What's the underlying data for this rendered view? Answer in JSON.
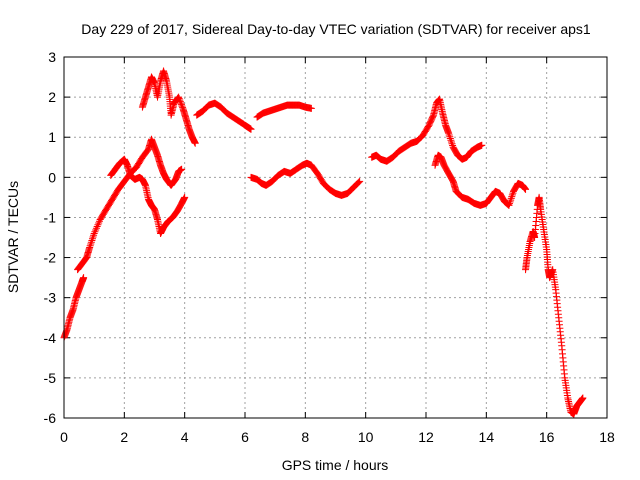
{
  "chart_data": {
    "type": "scatter",
    "title": "Day 229 of 2017, Sidereal Day-to-day VTEC variation (SDTVAR) for receiver aps1",
    "xlabel": "GPS time / hours",
    "ylabel": "SDTVAR / TECUs",
    "xlim": [
      0,
      18
    ],
    "ylim": [
      -6,
      3
    ],
    "xticks": [
      "0",
      "2",
      "4",
      "6",
      "8",
      "10",
      "12",
      "14",
      "16",
      "18"
    ],
    "yticks": [
      "3",
      "2",
      "1",
      "0",
      "-1",
      "-2",
      "-3",
      "-4",
      "-5",
      "-6"
    ],
    "grid": true,
    "marker": "+",
    "color": "#ff0000",
    "series": [
      {
        "name": "track-1",
        "points": [
          [
            0,
            -4.0
          ],
          [
            0.1,
            -3.8
          ],
          [
            0.2,
            -3.5
          ],
          [
            0.3,
            -3.3
          ],
          [
            0.4,
            -3.0
          ],
          [
            0.5,
            -2.8
          ],
          [
            0.6,
            -2.6
          ],
          [
            0.65,
            -2.5
          ]
        ]
      },
      {
        "name": "track-2",
        "points": [
          [
            0.45,
            -2.3
          ],
          [
            0.6,
            -2.15
          ],
          [
            0.75,
            -2.0
          ],
          [
            0.85,
            -1.75
          ],
          [
            1.0,
            -1.4
          ],
          [
            1.2,
            -1.05
          ],
          [
            1.4,
            -0.8
          ],
          [
            1.6,
            -0.55
          ],
          [
            1.8,
            -0.3
          ],
          [
            2.0,
            -0.1
          ],
          [
            2.2,
            0.1
          ],
          [
            2.4,
            0.25
          ],
          [
            2.6,
            0.5
          ],
          [
            2.8,
            0.7
          ],
          [
            2.9,
            0.95
          ],
          [
            3.0,
            0.75
          ],
          [
            3.1,
            0.55
          ],
          [
            3.2,
            0.3
          ],
          [
            3.3,
            0.1
          ],
          [
            3.4,
            -0.05
          ],
          [
            3.55,
            -0.2
          ],
          [
            3.7,
            -0.05
          ],
          [
            3.8,
            0.15
          ],
          [
            3.9,
            0.2
          ]
        ]
      },
      {
        "name": "track-3",
        "points": [
          [
            1.55,
            0.05
          ],
          [
            1.7,
            0.2
          ],
          [
            1.85,
            0.35
          ],
          [
            2.0,
            0.45
          ],
          [
            2.1,
            0.3
          ],
          [
            2.2,
            0.05
          ],
          [
            2.35,
            -0.05
          ],
          [
            2.5,
            0.0
          ],
          [
            2.6,
            -0.05
          ],
          [
            2.7,
            -0.2
          ],
          [
            2.8,
            -0.55
          ],
          [
            2.9,
            -0.7
          ],
          [
            3.0,
            -0.8
          ],
          [
            3.1,
            -1.05
          ],
          [
            3.2,
            -1.4
          ],
          [
            3.3,
            -1.25
          ],
          [
            3.45,
            -1.1
          ],
          [
            3.6,
            -1.0
          ],
          [
            3.75,
            -0.85
          ],
          [
            3.9,
            -0.65
          ],
          [
            4.0,
            -0.5
          ]
        ]
      },
      {
        "name": "track-4",
        "points": [
          [
            2.6,
            1.75
          ],
          [
            2.7,
            2.0
          ],
          [
            2.8,
            2.25
          ],
          [
            2.9,
            2.5
          ],
          [
            3.0,
            2.35
          ],
          [
            3.1,
            2.0
          ],
          [
            3.2,
            2.4
          ],
          [
            3.3,
            2.65
          ],
          [
            3.4,
            2.4
          ],
          [
            3.5,
            2.0
          ],
          [
            3.55,
            1.55
          ],
          [
            3.65,
            1.85
          ],
          [
            3.8,
            2.0
          ],
          [
            3.95,
            1.7
          ],
          [
            4.05,
            1.45
          ],
          [
            4.15,
            1.2
          ],
          [
            4.25,
            1.0
          ],
          [
            4.35,
            0.85
          ]
        ]
      },
      {
        "name": "track-5",
        "points": [
          [
            4.4,
            1.55
          ],
          [
            4.6,
            1.65
          ],
          [
            4.8,
            1.8
          ],
          [
            5.0,
            1.85
          ],
          [
            5.2,
            1.75
          ],
          [
            5.4,
            1.6
          ],
          [
            5.6,
            1.5
          ],
          [
            5.8,
            1.4
          ],
          [
            6.0,
            1.3
          ],
          [
            6.1,
            1.25
          ],
          [
            6.2,
            1.2
          ]
        ]
      },
      {
        "name": "track-6",
        "points": [
          [
            6.4,
            1.5
          ],
          [
            6.6,
            1.6
          ],
          [
            6.8,
            1.65
          ],
          [
            7.0,
            1.7
          ],
          [
            7.2,
            1.75
          ],
          [
            7.4,
            1.8
          ],
          [
            7.6,
            1.8
          ],
          [
            7.8,
            1.8
          ],
          [
            8.0,
            1.75
          ],
          [
            8.2,
            1.72
          ]
        ]
      },
      {
        "name": "track-7",
        "points": [
          [
            6.2,
            0.0
          ],
          [
            6.4,
            -0.05
          ],
          [
            6.55,
            -0.15
          ],
          [
            6.7,
            -0.2
          ],
          [
            6.9,
            -0.1
          ],
          [
            7.1,
            0.05
          ],
          [
            7.3,
            0.15
          ],
          [
            7.5,
            0.1
          ],
          [
            7.7,
            0.2
          ],
          [
            7.9,
            0.3
          ],
          [
            8.05,
            0.35
          ],
          [
            8.2,
            0.3
          ],
          [
            8.4,
            0.1
          ],
          [
            8.6,
            -0.15
          ],
          [
            8.8,
            -0.3
          ],
          [
            9.0,
            -0.4
          ],
          [
            9.2,
            -0.45
          ],
          [
            9.4,
            -0.4
          ],
          [
            9.6,
            -0.25
          ],
          [
            9.8,
            -0.1
          ]
        ]
      },
      {
        "name": "track-8",
        "points": [
          [
            10.2,
            0.5
          ],
          [
            10.35,
            0.55
          ],
          [
            10.5,
            0.45
          ],
          [
            10.7,
            0.4
          ],
          [
            10.9,
            0.5
          ],
          [
            11.1,
            0.65
          ],
          [
            11.3,
            0.75
          ],
          [
            11.5,
            0.85
          ],
          [
            11.7,
            0.9
          ],
          [
            11.9,
            1.05
          ],
          [
            12.1,
            1.3
          ],
          [
            12.25,
            1.55
          ],
          [
            12.35,
            1.85
          ],
          [
            12.45,
            1.95
          ],
          [
            12.55,
            1.6
          ],
          [
            12.65,
            1.3
          ],
          [
            12.75,
            1.1
          ],
          [
            12.9,
            0.75
          ],
          [
            13.05,
            0.55
          ],
          [
            13.2,
            0.45
          ],
          [
            13.35,
            0.5
          ],
          [
            13.5,
            0.65
          ],
          [
            13.7,
            0.75
          ],
          [
            13.85,
            0.8
          ]
        ]
      },
      {
        "name": "track-9",
        "points": [
          [
            12.3,
            0.3
          ],
          [
            12.4,
            0.55
          ],
          [
            12.5,
            0.5
          ],
          [
            12.6,
            0.3
          ],
          [
            12.75,
            0.1
          ],
          [
            12.9,
            -0.1
          ],
          [
            13.0,
            -0.35
          ],
          [
            13.2,
            -0.5
          ],
          [
            13.4,
            -0.55
          ],
          [
            13.6,
            -0.65
          ],
          [
            13.8,
            -0.7
          ],
          [
            14.0,
            -0.65
          ],
          [
            14.15,
            -0.5
          ],
          [
            14.3,
            -0.35
          ],
          [
            14.45,
            -0.4
          ],
          [
            14.6,
            -0.6
          ],
          [
            14.75,
            -0.7
          ],
          [
            14.9,
            -0.35
          ],
          [
            15.05,
            -0.15
          ],
          [
            15.2,
            -0.2
          ],
          [
            15.3,
            -0.3
          ]
        ]
      },
      {
        "name": "track-10",
        "points": [
          [
            15.3,
            -2.3
          ],
          [
            15.35,
            -2.0
          ],
          [
            15.45,
            -1.6
          ],
          [
            15.55,
            -1.35
          ],
          [
            15.6,
            -1.5
          ],
          [
            15.7,
            -0.7
          ],
          [
            15.75,
            -0.5
          ],
          [
            15.8,
            -0.8
          ],
          [
            15.9,
            -1.3
          ],
          [
            16.0,
            -1.8
          ],
          [
            16.05,
            -2.3
          ],
          [
            16.1,
            -2.5
          ],
          [
            16.2,
            -2.3
          ],
          [
            16.3,
            -2.8
          ],
          [
            16.4,
            -3.5
          ],
          [
            16.5,
            -4.2
          ],
          [
            16.6,
            -5.0
          ],
          [
            16.7,
            -5.5
          ],
          [
            16.8,
            -5.85
          ],
          [
            16.9,
            -5.9
          ],
          [
            17.0,
            -5.7
          ],
          [
            17.1,
            -5.6
          ],
          [
            17.2,
            -5.5
          ]
        ]
      }
    ]
  }
}
